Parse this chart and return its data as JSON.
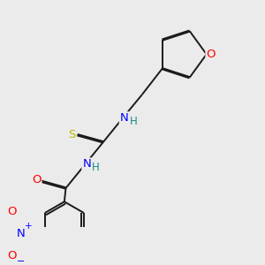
{
  "background_color": "#ebebeb",
  "bond_color": "#1a1a1a",
  "atom_colors": {
    "O": "#ff0000",
    "N": "#0000ff",
    "S": "#b8b800",
    "H": "#1a8a8a",
    "C": "#1a1a1a"
  },
  "figsize": [
    3.0,
    3.0
  ],
  "dpi": 100
}
